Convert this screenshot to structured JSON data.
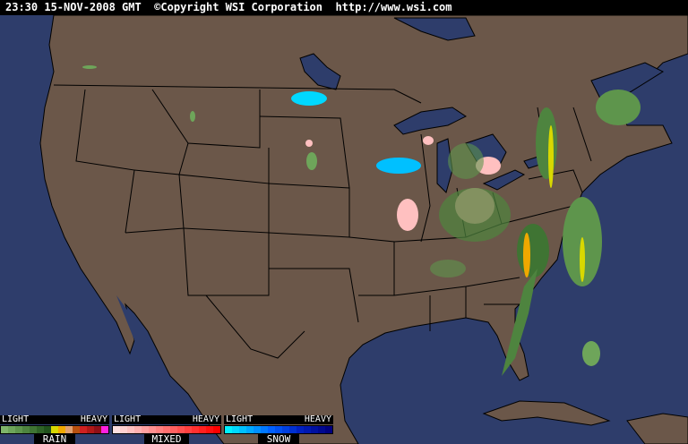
{
  "header": {
    "text": "23:30 15-NOV-2008 GMT  ©Copyright WSI Corporation  http://www.wsi.com"
  },
  "map": {
    "ocean_color": "#2e3d6b",
    "land_color": "#6b5749",
    "border_color": "#000000"
  },
  "legend": [
    {
      "light": "LIGHT",
      "heavy": "HEAVY",
      "name": "RAIN",
      "colors": [
        "#7fb56a",
        "#6ea55a",
        "#5e954c",
        "#4e843f",
        "#3f7433",
        "#2f6327",
        "#20521c",
        "#d8d800",
        "#f0a800",
        "#e0a070",
        "#b85010",
        "#d02020",
        "#b01818",
        "#901018",
        "#ff20e0"
      ]
    },
    {
      "light": "LIGHT",
      "heavy": "HEAVY",
      "name": "MIXED",
      "colors": [
        "#ffe0e0",
        "#ffd0d0",
        "#ffc0c0",
        "#ffb0b0",
        "#ffa0a0",
        "#ff9090",
        "#ff8080",
        "#ff7070",
        "#ff6060",
        "#ff5050",
        "#ff4040",
        "#ff3030",
        "#ff2020",
        "#ff1010",
        "#ff0000"
      ]
    },
    {
      "light": "LIGHT",
      "heavy": "HEAVY",
      "name": "SNOW",
      "colors": [
        "#00f0ff",
        "#00d8ff",
        "#00c0ff",
        "#00a8ff",
        "#0090ff",
        "#0078ff",
        "#0060ff",
        "#0050f0",
        "#0040e0",
        "#0030d0",
        "#0020c0",
        "#0018b0",
        "#0010a0",
        "#000890",
        "#000080"
      ]
    }
  ]
}
